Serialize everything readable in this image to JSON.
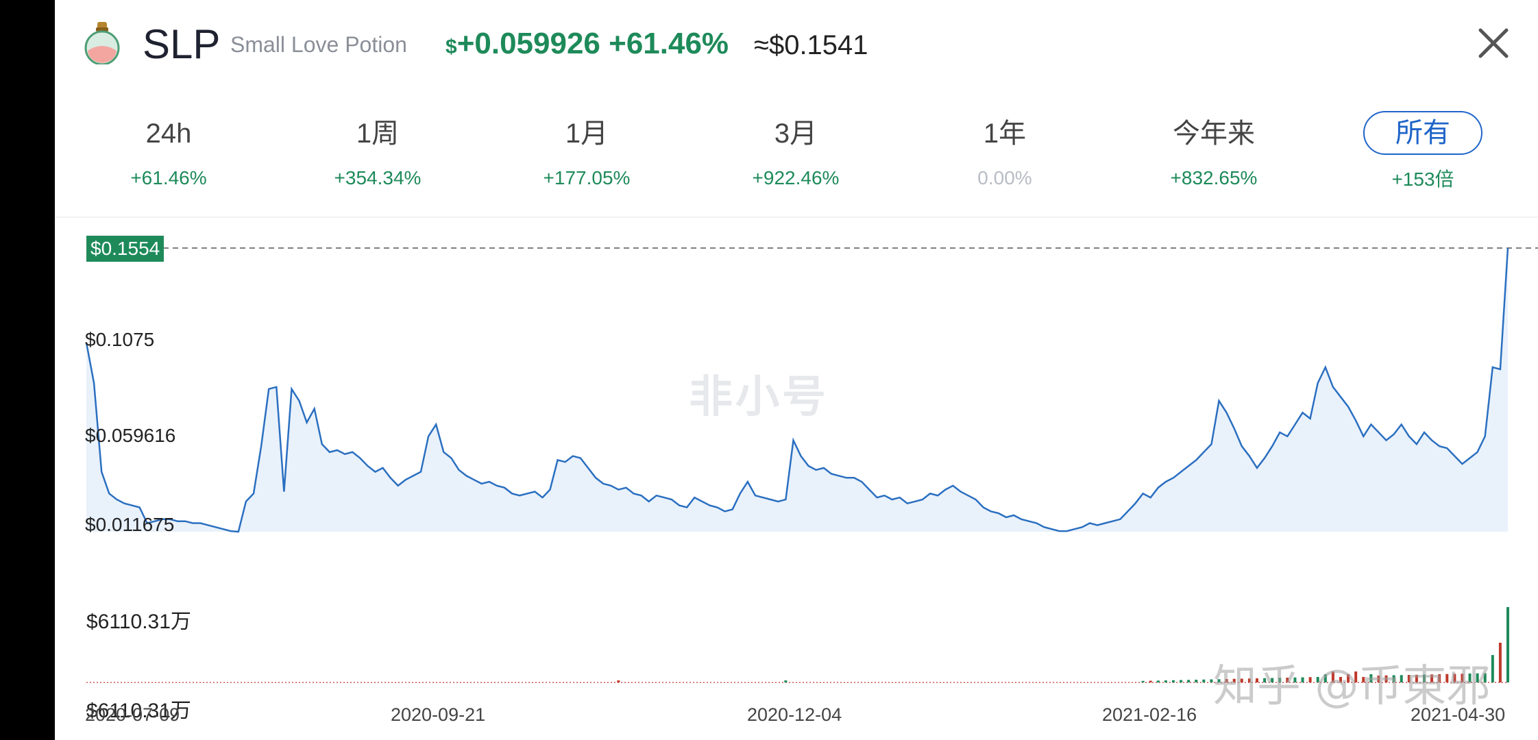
{
  "header": {
    "symbol": "SLP",
    "name": "Small Love Potion",
    "change_dollar_sign": "$",
    "change_value": "+0.059926 +61.46%",
    "approx_price": "≈$0.1541",
    "close_icon": "close-icon",
    "coin_icon": "potion-bottle-icon"
  },
  "tabs": [
    {
      "label": "24h",
      "pct": "+61.46%"
    },
    {
      "label": "1周",
      "pct": "+354.34%"
    },
    {
      "label": "1月",
      "pct": "+177.05%"
    },
    {
      "label": "3月",
      "pct": "+922.46%"
    },
    {
      "label": "1年",
      "pct": "0.00%"
    },
    {
      "label": "今年来",
      "pct": "+832.65%"
    },
    {
      "label": "所有",
      "pct": "+153倍"
    }
  ],
  "active_tab": "所有",
  "colors": {
    "up": "#1e8a5a",
    "line": "#2a6fc0",
    "fill": "#e9f1fb",
    "active": "#1e64c8",
    "volume_down": "#c0392b"
  },
  "chart": {
    "current_price_tag": "$0.1554",
    "y_labels": [
      "$0.1075",
      "$0.059616",
      "$0.011675"
    ],
    "x_labels": [
      "2020-07-09",
      "2020-09-21",
      "2020-12-04",
      "2021-02-16",
      "2021-04-30"
    ],
    "volume_labels": [
      "$6110.31万",
      "$6110.31万"
    ],
    "watermark": "非小号",
    "watermark2": "知乎 @币東邪"
  },
  "chart_data": {
    "type": "line",
    "x_range": [
      "2020-07-09",
      "2021-04-30"
    ],
    "ylim": [
      0.011675,
      0.1554
    ],
    "series": [
      {
        "values": [
          0.1075,
          0.087,
          0.042,
          0.031,
          0.028,
          0.026,
          0.025,
          0.024,
          0.016,
          0.017,
          0.018,
          0.018,
          0.017,
          0.017,
          0.016,
          0.016,
          0.015,
          0.014,
          0.013,
          0.012,
          0.011675,
          0.027,
          0.031,
          0.055,
          0.084,
          0.085,
          0.032,
          0.084,
          0.078,
          0.067,
          0.074,
          0.056,
          0.052,
          0.053,
          0.051,
          0.052,
          0.049,
          0.045,
          0.042,
          0.044,
          0.039,
          0.035,
          0.038,
          0.04,
          0.042,
          0.06,
          0.066,
          0.052,
          0.049,
          0.043,
          0.04,
          0.038,
          0.036,
          0.037,
          0.035,
          0.034,
          0.031,
          0.03,
          0.031,
          0.032,
          0.029,
          0.033,
          0.048,
          0.047,
          0.05,
          0.049,
          0.044,
          0.039,
          0.036,
          0.035,
          0.033,
          0.034,
          0.031,
          0.03,
          0.027,
          0.03,
          0.029,
          0.028,
          0.025,
          0.024,
          0.029,
          0.027,
          0.025,
          0.024,
          0.022,
          0.023,
          0.031,
          0.037,
          0.03,
          0.029,
          0.028,
          0.027,
          0.028,
          0.058,
          0.05,
          0.045,
          0.043,
          0.044,
          0.041,
          0.04,
          0.039,
          0.039,
          0.037,
          0.033,
          0.029,
          0.03,
          0.028,
          0.029,
          0.026,
          0.027,
          0.028,
          0.031,
          0.03,
          0.033,
          0.035,
          0.032,
          0.03,
          0.028,
          0.024,
          0.022,
          0.021,
          0.019,
          0.02,
          0.018,
          0.017,
          0.016,
          0.014,
          0.013,
          0.012,
          0.012,
          0.013,
          0.014,
          0.016,
          0.015,
          0.016,
          0.017,
          0.018,
          0.022,
          0.026,
          0.031,
          0.029,
          0.034,
          0.037,
          0.039,
          0.042,
          0.045,
          0.048,
          0.052,
          0.056,
          0.078,
          0.072,
          0.064,
          0.055,
          0.05,
          0.044,
          0.049,
          0.055,
          0.062,
          0.06,
          0.066,
          0.072,
          0.069,
          0.087,
          0.095,
          0.085,
          0.08,
          0.075,
          0.068,
          0.06,
          0.066,
          0.062,
          0.058,
          0.061,
          0.066,
          0.06,
          0.056,
          0.062,
          0.058,
          0.055,
          0.054,
          0.05,
          0.046,
          0.049,
          0.052,
          0.06,
          0.095,
          0.094,
          0.1554
        ]
      }
    ],
    "volume": {
      "label_max": "$6110.31万",
      "recent_spike": true
    }
  }
}
